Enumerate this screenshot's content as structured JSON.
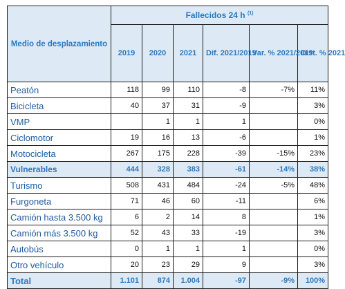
{
  "header": {
    "group_title": "Fallecidos 24 h",
    "group_note": "(1)",
    "row_header": "Medio de desplazamiento",
    "columns": [
      "2019",
      "2020",
      "2021",
      "Dif. 2021/2019",
      "Var. % 2021/2019",
      "Dist. % 2021"
    ]
  },
  "rows": [
    {
      "label": "Peatón",
      "values": [
        "118",
        "99",
        "110",
        "-8",
        "-7%",
        "11%"
      ]
    },
    {
      "label": "Bicicleta",
      "values": [
        "40",
        "37",
        "31",
        "-9",
        "",
        "3%"
      ]
    },
    {
      "label": "VMP",
      "values": [
        "",
        "1",
        "1",
        "1",
        "",
        "0%"
      ]
    },
    {
      "label": "Ciclomotor",
      "values": [
        "19",
        "16",
        "13",
        "-6",
        "",
        "1%"
      ]
    },
    {
      "label": "Motocicleta",
      "values": [
        "267",
        "175",
        "228",
        "-39",
        "-15%",
        "23%"
      ]
    },
    {
      "label": "Vulnerables",
      "values": [
        "444",
        "328",
        "383",
        "-61",
        "-14%",
        "38%"
      ],
      "style": "bold"
    },
    {
      "label": "Turismo",
      "values": [
        "508",
        "431",
        "484",
        "-24",
        "-5%",
        "48%"
      ]
    },
    {
      "label": "Furgoneta",
      "values": [
        "71",
        "46",
        "60",
        "-11",
        "",
        "6%"
      ]
    },
    {
      "label": "Camión hasta 3.500 kg",
      "values": [
        "6",
        "2",
        "14",
        "8",
        "",
        "1%"
      ]
    },
    {
      "label": "Camión más 3.500 kg",
      "values": [
        "52",
        "43",
        "33",
        "-19",
        "",
        "3%"
      ]
    },
    {
      "label": "Autobús",
      "values": [
        "0",
        "1",
        "1",
        "1",
        "",
        "0%"
      ]
    },
    {
      "label": "Otro vehículo",
      "values": [
        "20",
        "23",
        "29",
        "9",
        "",
        "3%"
      ]
    },
    {
      "label": "Total",
      "values": [
        "1.101",
        "874",
        "1.004",
        "-97",
        "-9%",
        "100%"
      ],
      "style": "total"
    }
  ]
}
